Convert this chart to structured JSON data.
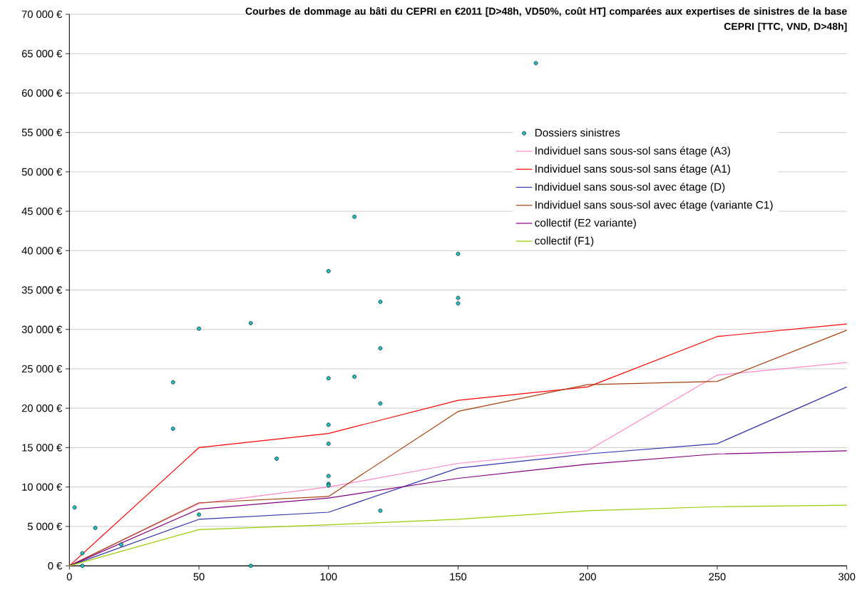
{
  "chart_data": {
    "type": "line",
    "title": "Courbes de dommage au bâti du CEPRI en €2011 [D>48h, VD50%, coût HT] comparées aux expertises de sinistres de la base CEPRI [TTC, VND, D>48h]",
    "xlim": [
      0,
      300
    ],
    "ylim": [
      0,
      70000
    ],
    "xticks": [
      0,
      50,
      100,
      150,
      200,
      250,
      300
    ],
    "yticks": [
      {
        "value": 0,
        "label": "0 €"
      },
      {
        "value": 5000,
        "label": "5 000 €"
      },
      {
        "value": 10000,
        "label": "10 000 €"
      },
      {
        "value": 15000,
        "label": "15 000 €"
      },
      {
        "value": 20000,
        "label": "20 000 €"
      },
      {
        "value": 25000,
        "label": "25 000 €"
      },
      {
        "value": 30000,
        "label": "30 000 €"
      },
      {
        "value": 35000,
        "label": "35 000 €"
      },
      {
        "value": 40000,
        "label": "40 000 €"
      },
      {
        "value": 45000,
        "label": "45 000 €"
      },
      {
        "value": 50000,
        "label": "50 000 €"
      },
      {
        "value": 55000,
        "label": "55 000 €"
      },
      {
        "value": 60000,
        "label": "60 000 €"
      },
      {
        "value": 65000,
        "label": "65 000 €"
      },
      {
        "value": 70000,
        "label": "70 000 €"
      }
    ],
    "grid": "y",
    "legend": "top right",
    "series": [
      {
        "name": "Dossiers sinistres",
        "type": "scatter",
        "marker": "circle",
        "color": "#1fc4c4",
        "x": [
          2,
          5,
          5,
          10,
          20,
          40,
          40,
          50,
          50,
          70,
          70,
          80,
          100,
          100,
          100,
          100,
          100,
          100,
          100,
          110,
          110,
          120,
          120,
          120,
          120,
          150,
          150,
          150,
          180
        ],
        "values": [
          7400,
          1600,
          0,
          4800,
          2700,
          23300,
          17400,
          30100,
          6500,
          30800,
          0,
          13600,
          37400,
          23800,
          17900,
          15500,
          11400,
          10400,
          10200,
          44300,
          24000,
          33500,
          27600,
          20600,
          7000,
          39600,
          34000,
          33300,
          63800
        ]
      },
      {
        "name": "Individuel sans sous-sol sans étage (A3)",
        "color": "#ff88cc",
        "x": [
          0,
          50,
          100,
          150,
          200,
          250,
          300
        ],
        "values": [
          0,
          7900,
          10000,
          13000,
          14600,
          24200,
          25800
        ]
      },
      {
        "name": "Individuel sans sous-sol sans étage (A1)",
        "color": "#ff0000",
        "x": [
          0,
          50,
          100,
          150,
          200,
          250,
          300
        ],
        "values": [
          0,
          15000,
          16800,
          21000,
          22700,
          29100,
          30700
        ]
      },
      {
        "name": "Individuel sans sous-sol avec étage (D)",
        "color": "#3333aa",
        "x": [
          0,
          50,
          100,
          150,
          200,
          250,
          300
        ],
        "values": [
          0,
          5900,
          6800,
          12400,
          14200,
          15500,
          22700
        ]
      },
      {
        "name": "Individuel sans sous-sol avec étage (variante C1)",
        "color": "#a5400f",
        "x": [
          0,
          50,
          100,
          150,
          200,
          250,
          300
        ],
        "values": [
          0,
          8000,
          8800,
          19600,
          23000,
          23400,
          29900
        ]
      },
      {
        "name": "collectif (E2 variante)",
        "color": "#800080",
        "x": [
          0,
          50,
          100,
          150,
          200,
          250,
          300
        ],
        "values": [
          0,
          7200,
          8600,
          11100,
          12900,
          14200,
          14600
        ]
      },
      {
        "name": "collectif (F1)",
        "color": "#99cc00",
        "x": [
          0,
          50,
          100,
          150,
          200,
          250,
          300
        ],
        "values": [
          0,
          4600,
          5200,
          5900,
          7000,
          7500,
          7700
        ]
      }
    ]
  }
}
